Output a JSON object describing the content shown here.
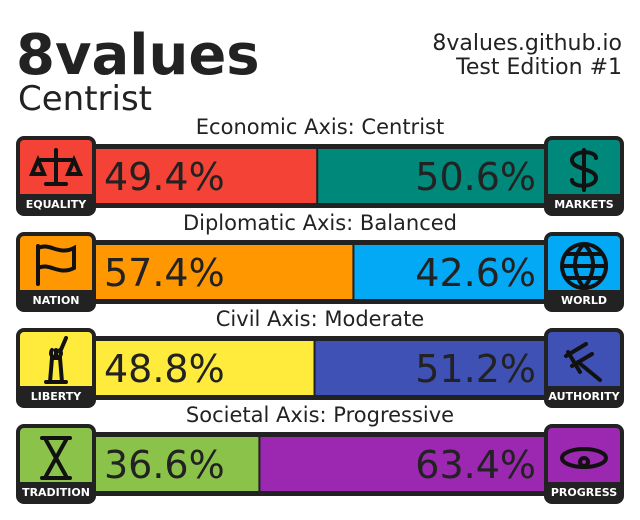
{
  "header": {
    "title": "8values",
    "subtitle": "Centrist",
    "site": "8values.github.io",
    "edition": "Test Edition #1"
  },
  "axes": [
    {
      "label": "Economic Axis: Centrist",
      "left": {
        "name": "EQUALITY",
        "value": 49.4,
        "value_label": "49.4%",
        "color": "#f44336"
      },
      "right": {
        "name": "MARKETS",
        "value": 50.6,
        "value_label": "50.6%",
        "color": "#00897b"
      }
    },
    {
      "label": "Diplomatic Axis: Balanced",
      "left": {
        "name": "NATION",
        "value": 57.4,
        "value_label": "57.4%",
        "color": "#ff9800"
      },
      "right": {
        "name": "WORLD",
        "value": 42.6,
        "value_label": "42.6%",
        "color": "#03a9f4"
      }
    },
    {
      "label": "Civil Axis: Moderate",
      "left": {
        "name": "LIBERTY",
        "value": 48.8,
        "value_label": "48.8%",
        "color": "#ffeb3b"
      },
      "right": {
        "name": "AUTHORITY",
        "value": 51.2,
        "value_label": "51.2%",
        "color": "#3f51b5"
      }
    },
    {
      "label": "Societal Axis: Progressive",
      "left": {
        "name": "TRADITION",
        "value": 36.6,
        "value_label": "36.6%",
        "color": "#8bc34a"
      },
      "right": {
        "name": "PROGRESS",
        "value": 63.4,
        "value_label": "63.4%",
        "color": "#9c27b0"
      }
    }
  ]
}
